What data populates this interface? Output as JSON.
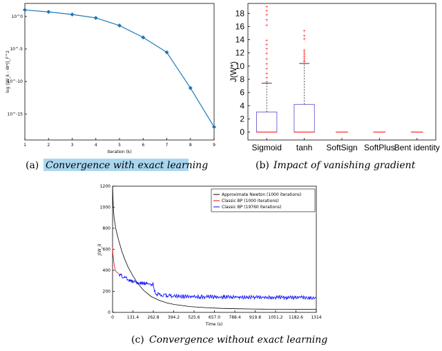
{
  "captions": {
    "a_tag": "(a)",
    "a_text": "Convergence with exact learning",
    "b_tag": "(b)",
    "b_text": "Impact of vanishing gradient",
    "c_tag": "(c)",
    "c_text": "Convergence without exact learning"
  },
  "chart_data": [
    {
      "id": "a",
      "type": "line",
      "ylabel": "log ||W_k - W*||_F^2",
      "xlabel": "iteration (k)",
      "y_scale": "log",
      "x": [
        1,
        2,
        3,
        4,
        5,
        6,
        7,
        8,
        9
      ],
      "x_ticks": [
        "1",
        "2",
        "3",
        "4",
        "5",
        "6",
        "7",
        "8",
        "9"
      ],
      "y_ticks": [
        {
          "value": 1,
          "label": "10^0"
        },
        {
          "value": 1e-05,
          "label": "10^-5"
        },
        {
          "value": 1e-10,
          "label": "10^-10"
        },
        {
          "value": 1e-15,
          "label": "10^-15"
        }
      ],
      "xlim": [
        1,
        9
      ],
      "ylim": [
        1e-19,
        100
      ],
      "series": [
        {
          "values": [
            10,
            5,
            2,
            0.6,
            0.04,
            0.0006,
            3e-06,
            1e-11,
            1e-17
          ],
          "color": "#1f77b4"
        }
      ],
      "highlight_color": "#a9d6ef"
    },
    {
      "id": "b",
      "type": "box",
      "ylabel": "J(W*)",
      "categories": [
        "Sigmoid",
        "tanh",
        "SoftSign",
        "SoftPlus",
        "Bent identity"
      ],
      "y_ticks": [
        "0",
        "2",
        "4",
        "6",
        "8",
        "10",
        "12",
        "14",
        "16",
        "18"
      ],
      "ylim": [
        -1.2,
        19.5
      ],
      "boxes": [
        {
          "q1": 0,
          "median": 0,
          "q3": 3.05,
          "whisker_high": 7.4,
          "outliers": [
            7.6,
            8.2,
            8.9,
            9.6,
            10.3,
            11.1,
            11.9,
            12.6,
            13.3,
            13.9,
            16.2,
            17.0,
            17.8,
            18.4,
            19.0
          ]
        },
        {
          "q1": 0,
          "median": 0,
          "q3": 4.2,
          "whisker_high": 10.4,
          "outliers": [
            10.6,
            10.9,
            11.2,
            11.5,
            11.8,
            12.1,
            12.4,
            14.1,
            14.6,
            15.3
          ]
        },
        {
          "q1": 0,
          "median": 0,
          "q3": 0,
          "whisker_high": 0,
          "outliers": []
        },
        {
          "q1": 0,
          "median": 0,
          "q3": 0,
          "whisker_high": 0,
          "outliers": []
        },
        {
          "q1": 0,
          "median": 0,
          "q3": 0,
          "whisker_high": 0,
          "outliers": []
        }
      ],
      "box_color": "#6a5acd",
      "median_color": "#ff0000",
      "outlier_color": "#ff0000"
    },
    {
      "id": "c",
      "type": "line",
      "ylabel": "J(W_i)",
      "xlabel": "Time (s)",
      "x_ticks": [
        "0",
        "131.4",
        "262.8",
        "394.2",
        "525.6",
        "657.0",
        "788.4",
        "919.8",
        "1051.2",
        "1182.6",
        "1314"
      ],
      "y_ticks": [
        "0",
        "200",
        "400",
        "600",
        "800",
        "1000",
        "1200"
      ],
      "xlim": [
        0,
        1314
      ],
      "ylim": [
        0,
        1200
      ],
      "legend_position": "top-right",
      "series": [
        {
          "name": "Approximate Newton (1000 iterations)",
          "color": "#000000",
          "x": [
            0,
            5,
            10,
            20,
            30,
            40,
            60,
            80,
            100,
            130,
            160,
            200,
            250,
            300,
            350,
            400,
            500,
            600,
            700,
            800,
            900,
            1000,
            1100,
            1200,
            1314
          ],
          "y": [
            1200,
            1000,
            900,
            800,
            740,
            680,
            580,
            500,
            430,
            350,
            280,
            210,
            150,
            115,
            90,
            75,
            55,
            45,
            38,
            35,
            32,
            30,
            29,
            28,
            28
          ]
        },
        {
          "name": "Classic BP (1000 iterations)",
          "color": "#ff0000",
          "x": [
            0,
            2,
            5,
            8,
            12,
            16,
            20,
            25,
            30,
            35,
            40
          ],
          "y": [
            620,
            560,
            520,
            480,
            440,
            410,
            395,
            385,
            380,
            375,
            370
          ]
        },
        {
          "name": "Classic BP (19760 iterations)",
          "color": "#0000ff",
          "x": [
            40,
            60,
            80,
            100,
            131.4,
            160,
            200,
            240,
            262.8,
            270,
            280,
            300,
            350,
            394.2,
            500,
            600,
            700,
            800,
            900,
            1000,
            1100,
            1200,
            1314
          ],
          "y": [
            365,
            345,
            330,
            310,
            290,
            282,
            276,
            270,
            268,
            200,
            175,
            168,
            160,
            155,
            150,
            148,
            146,
            145,
            144,
            143,
            142,
            141,
            140
          ]
        }
      ]
    }
  ]
}
